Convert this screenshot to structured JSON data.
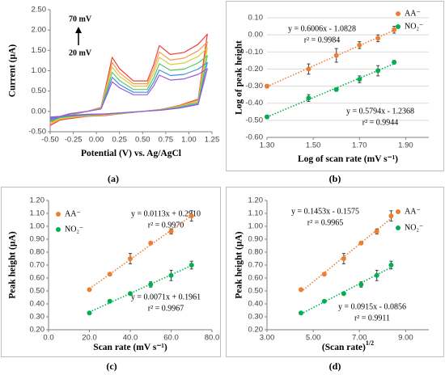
{
  "chart_data": [
    {
      "type": "line",
      "xlabel": "Potential (V) vs. Ag/AgCl",
      "ylabel": "Current (µA)",
      "caption": "(a)",
      "annotations": [
        "70 mV",
        "20 mV"
      ],
      "xlim": [
        -0.5,
        1.25
      ],
      "ylim": [
        -0.5,
        2.5
      ],
      "xticks": [
        {
          "value": -0.5,
          "label": "-0.50"
        },
        {
          "value": -0.25,
          "label": "-0.25"
        },
        {
          "value": 0,
          "label": "0.00"
        },
        {
          "value": 0.25,
          "label": "0.25"
        },
        {
          "value": 0.5,
          "label": "0.50"
        },
        {
          "value": 0.75,
          "label": "0.75"
        },
        {
          "value": 1,
          "label": "1.00"
        },
        {
          "value": 1.25,
          "label": "1.25"
        }
      ],
      "yticks": [
        {
          "value": -0.5,
          "label": "-0.50"
        },
        {
          "value": 0,
          "label": "0.00"
        },
        {
          "value": 0.5,
          "label": "0.50"
        },
        {
          "value": 1,
          "label": "1.00"
        },
        {
          "value": 1.5,
          "label": "1.50"
        },
        {
          "value": 2,
          "label": "2.00"
        },
        {
          "value": 2.5,
          "label": "2.50"
        }
      ],
      "grid": false,
      "x": [
        -0.5,
        -0.3,
        -0.1,
        0.05,
        0.12,
        0.17,
        0.25,
        0.4,
        0.55,
        0.62,
        0.68,
        0.8,
        0.95,
        1.1,
        1.2,
        1.1,
        0.9,
        0.7,
        0.5,
        0.3,
        0.1,
        -0.1,
        -0.3,
        -0.5
      ],
      "series": [
        {
          "color": "#f0413c",
          "values": [
            -0.35,
            -0.1,
            0.0,
            0.1,
            0.8,
            1.33,
            1.05,
            0.75,
            0.75,
            1.15,
            1.62,
            1.4,
            1.45,
            1.65,
            1.9,
            0.3,
            0.15,
            0.05,
            0.0,
            -0.05,
            -0.1,
            -0.12,
            -0.18,
            -0.25
          ]
        },
        {
          "color": "#f59a56",
          "values": [
            -0.32,
            -0.09,
            0.0,
            0.09,
            0.72,
            1.2,
            0.95,
            0.68,
            0.68,
            1.04,
            1.46,
            1.26,
            1.31,
            1.49,
            1.71,
            0.27,
            0.14,
            0.05,
            0.0,
            -0.05,
            -0.09,
            -0.11,
            -0.16,
            -0.23
          ]
        },
        {
          "color": "#d9cf3a",
          "values": [
            -0.29,
            -0.08,
            0.0,
            0.08,
            0.66,
            1.09,
            0.86,
            0.62,
            0.62,
            0.94,
            1.33,
            1.15,
            1.19,
            1.35,
            1.56,
            0.25,
            0.12,
            0.04,
            0.0,
            -0.04,
            -0.08,
            -0.1,
            -0.15,
            -0.21
          ]
        },
        {
          "color": "#5cc46a",
          "values": [
            -0.25,
            -0.07,
            0.0,
            0.07,
            0.58,
            0.96,
            0.76,
            0.54,
            0.54,
            0.83,
            1.17,
            1.01,
            1.04,
            1.19,
            1.37,
            0.22,
            0.11,
            0.04,
            0.0,
            -0.04,
            -0.07,
            -0.09,
            -0.13,
            -0.18
          ]
        },
        {
          "color": "#3d8fe0",
          "values": [
            -0.22,
            -0.06,
            0.0,
            0.06,
            0.5,
            0.84,
            0.66,
            0.47,
            0.47,
            0.72,
            1.02,
            0.88,
            0.91,
            1.04,
            1.2,
            0.19,
            0.09,
            0.03,
            0.0,
            -0.03,
            -0.06,
            -0.08,
            -0.11,
            -0.16
          ]
        },
        {
          "color": "#9b5cd0",
          "values": [
            -0.19,
            -0.06,
            0.0,
            0.06,
            0.44,
            0.73,
            0.58,
            0.41,
            0.41,
            0.63,
            0.89,
            0.77,
            0.8,
            0.91,
            1.05,
            0.17,
            0.08,
            0.03,
            0.0,
            -0.03,
            -0.06,
            -0.07,
            -0.1,
            -0.14
          ]
        }
      ]
    },
    {
      "type": "scatter",
      "xlabel": "Log of scan rate (mV s⁻¹)",
      "ylabel": "Log of peak height",
      "caption": "(b)",
      "annotations": [
        "y = 0.6006x - 1.0828",
        "r² = 0.9984",
        "y = 0.5794x - 1.2368",
        "r² = 0.9944"
      ],
      "xlim": [
        1.3,
        2.0
      ],
      "ylim": [
        -0.6,
        0.1
      ],
      "xticks": [
        {
          "value": 1.3,
          "label": "1.30"
        },
        {
          "value": 1.5,
          "label": "1.50"
        },
        {
          "value": 1.7,
          "label": "1.70"
        },
        {
          "value": 1.9,
          "label": "1.90"
        }
      ],
      "yticks": [
        {
          "value": -0.6,
          "label": "-0.60"
        },
        {
          "value": -0.5,
          "label": "-0.50"
        },
        {
          "value": -0.4,
          "label": "-0.40"
        },
        {
          "value": -0.3,
          "label": "-0.30"
        },
        {
          "value": -0.2,
          "label": "-0.20"
        },
        {
          "value": -0.1,
          "label": "-0.10"
        },
        {
          "value": 0,
          "label": "0.00"
        },
        {
          "value": 0.1,
          "label": "0.10"
        }
      ],
      "grid": true,
      "x": [
        1.3,
        1.48,
        1.6,
        1.7,
        1.78,
        1.85
      ],
      "series": [
        {
          "name": "AA⁻",
          "color": "#ed7d31",
          "values": [
            -0.3,
            -0.2,
            -0.12,
            -0.06,
            -0.02,
            0.03
          ],
          "errors": [
            0.01,
            0.03,
            0.04,
            0.02,
            0.02,
            0.02
          ]
        },
        {
          "name": "NO₂⁻",
          "color": "#00b050",
          "values": [
            -0.48,
            -0.37,
            -0.32,
            -0.26,
            -0.21,
            -0.16
          ],
          "errors": [
            0.01,
            0.02,
            0.01,
            0.02,
            0.03,
            0.01
          ]
        }
      ]
    },
    {
      "type": "scatter",
      "xlabel": "Scan rate (mV s⁻¹)",
      "ylabel": "Peak height (µA)",
      "caption": "(c)",
      "annotations": [
        "y = 0.0113x + 0.2910",
        "r² = 0.9970",
        "y = 0.0071x + 0.1961",
        "r² = 0.9967"
      ],
      "xlim": [
        0,
        80
      ],
      "ylim": [
        0.2,
        1.2
      ],
      "xticks": [
        {
          "value": 0,
          "label": "0.0"
        },
        {
          "value": 20,
          "label": "20.0"
        },
        {
          "value": 40,
          "label": "40.0"
        },
        {
          "value": 60,
          "label": "60.0"
        },
        {
          "value": 80,
          "label": "80.0"
        }
      ],
      "yticks": [
        {
          "value": 0.2,
          "label": "0.20"
        },
        {
          "value": 0.3,
          "label": "0.30"
        },
        {
          "value": 0.4,
          "label": "0.40"
        },
        {
          "value": 0.5,
          "label": "0.50"
        },
        {
          "value": 0.6,
          "label": "0.60"
        },
        {
          "value": 0.7,
          "label": "0.70"
        },
        {
          "value": 0.8,
          "label": "0.80"
        },
        {
          "value": 0.9,
          "label": "0.90"
        },
        {
          "value": 1.0,
          "label": "1.00"
        },
        {
          "value": 1.1,
          "label": "1.10"
        },
        {
          "value": 1.2,
          "label": "1.20"
        }
      ],
      "grid": false,
      "x": [
        20,
        30,
        40,
        50,
        60,
        70
      ],
      "series": [
        {
          "name": "AA⁻",
          "color": "#ed7d31",
          "values": [
            0.51,
            0.63,
            0.75,
            0.87,
            0.96,
            1.08
          ],
          "errors": [
            0.01,
            0.01,
            0.04,
            0.01,
            0.02,
            0.04
          ]
        },
        {
          "name": "NO₂⁻",
          "color": "#00b050",
          "values": [
            0.33,
            0.42,
            0.48,
            0.55,
            0.62,
            0.7
          ],
          "errors": [
            0.01,
            0.01,
            0.01,
            0.02,
            0.04,
            0.03
          ]
        }
      ]
    },
    {
      "type": "scatter",
      "xlabel": "(Scan rate)",
      "xlabel_superscript": "1/2",
      "ylabel": "Peak height (µA)",
      "caption": "(d)",
      "annotations": [
        "y = 0.1453x - 0.1575",
        "r² = 0.9965",
        "y = 0.0915x - 0.0856",
        "r² = 0.9911"
      ],
      "xlim": [
        3,
        10
      ],
      "ylim": [
        0.2,
        1.2
      ],
      "xticks": [
        {
          "value": 3,
          "label": "3.00"
        },
        {
          "value": 5,
          "label": "5.00"
        },
        {
          "value": 7,
          "label": "7.00"
        },
        {
          "value": 9,
          "label": "9.00"
        }
      ],
      "yticks": [
        {
          "value": 0.2,
          "label": "0.20"
        },
        {
          "value": 0.3,
          "label": "0.30"
        },
        {
          "value": 0.4,
          "label": "0.40"
        },
        {
          "value": 0.5,
          "label": "0.50"
        },
        {
          "value": 0.6,
          "label": "0.60"
        },
        {
          "value": 0.7,
          "label": "0.70"
        },
        {
          "value": 0.8,
          "label": "0.80"
        },
        {
          "value": 0.9,
          "label": "0.90"
        },
        {
          "value": 1.0,
          "label": "1.00"
        },
        {
          "value": 1.1,
          "label": "1.10"
        },
        {
          "value": 1.2,
          "label": "1.20"
        }
      ],
      "grid": false,
      "x": [
        4.47,
        5.48,
        6.32,
        7.07,
        7.75,
        8.37
      ],
      "series": [
        {
          "name": "AA⁻",
          "color": "#ed7d31",
          "values": [
            0.51,
            0.63,
            0.75,
            0.87,
            0.96,
            1.08
          ],
          "errors": [
            0.01,
            0.01,
            0.04,
            0.01,
            0.02,
            0.04
          ]
        },
        {
          "name": "NO₂⁻",
          "color": "#00b050",
          "values": [
            0.33,
            0.42,
            0.48,
            0.55,
            0.62,
            0.7
          ],
          "errors": [
            0.01,
            0.01,
            0.01,
            0.02,
            0.04,
            0.03
          ]
        }
      ]
    }
  ]
}
